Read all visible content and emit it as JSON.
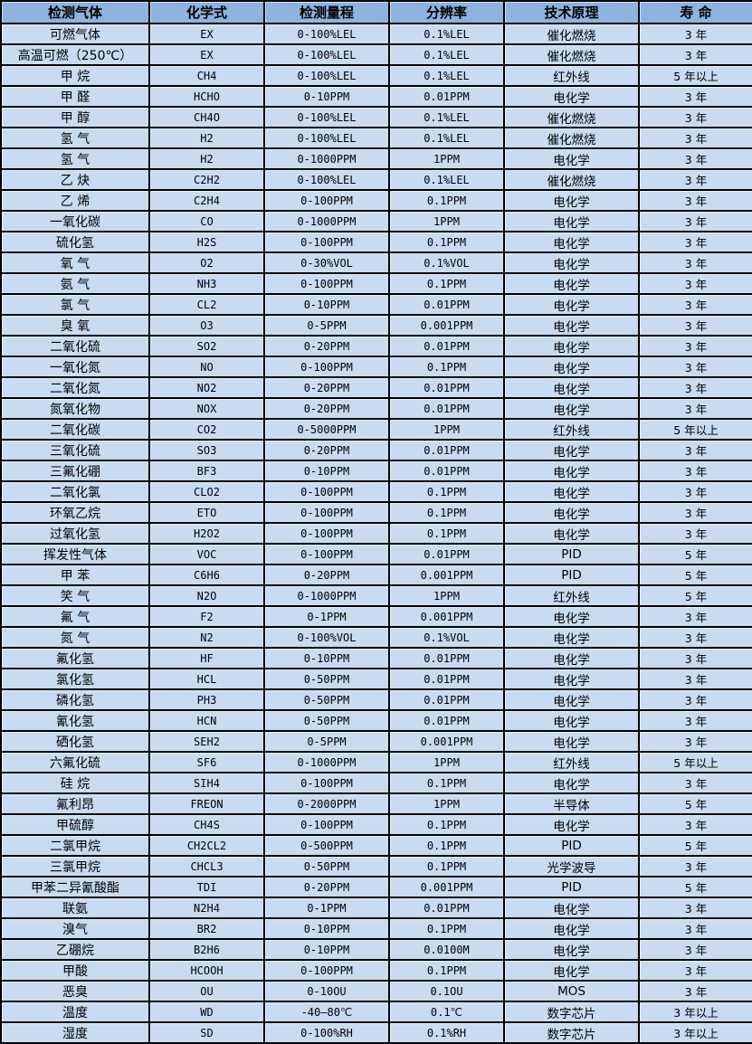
{
  "colors": {
    "header_bg": "#8FB2DF",
    "row_bg": "#C9DBF1",
    "border": "#000000",
    "text": "#000000"
  },
  "table": {
    "headers": [
      "检测气体",
      "化学式",
      "检测量程",
      "分辨率",
      "技术原理",
      "寿 命"
    ],
    "rows": [
      [
        "可燃气体",
        "EX",
        "0-100%LEL",
        "0.1%LEL",
        "催化燃烧",
        "3 年"
      ],
      [
        "高温可燃（250℃）",
        "EX",
        "0-100%LEL",
        "0.1%LEL",
        "催化燃烧",
        "3 年"
      ],
      [
        "甲 烷",
        "CH4",
        "0-100%LEL",
        "0.1%LEL",
        "红外线",
        "5 年以上"
      ],
      [
        "甲 醛",
        "HCHO",
        "0-10PPM",
        "0.01PPM",
        "电化学",
        "3 年"
      ],
      [
        "甲 醇",
        "CH4O",
        "0-100%LEL",
        "0.1%LEL",
        "催化燃烧",
        "3 年"
      ],
      [
        "氢 气",
        "H2",
        "0-100%LEL",
        "0.1%LEL",
        "催化燃烧",
        "3 年"
      ],
      [
        "氢 气",
        "H2",
        "0-1000PPM",
        "1PPM",
        "电化学",
        "3 年"
      ],
      [
        "乙 炔",
        "C2H2",
        "0-100%LEL",
        "0.1%LEL",
        "催化燃烧",
        "3 年"
      ],
      [
        "乙 烯",
        "C2H4",
        "0-100PPM",
        "0.1PPM",
        "电化学",
        "3 年"
      ],
      [
        "一氧化碳",
        "CO",
        "0-1000PPM",
        "1PPM",
        "电化学",
        "3 年"
      ],
      [
        "硫化氢",
        "H2S",
        "0-100PPM",
        "0.1PPM",
        "电化学",
        "3 年"
      ],
      [
        "氧 气",
        "O2",
        "0-30%VOL",
        "0.1%VOL",
        "电化学",
        "3 年"
      ],
      [
        "氨 气",
        "NH3",
        "0-100PPM",
        "0.1PPM",
        "电化学",
        "3 年"
      ],
      [
        "氯 气",
        "CL2",
        "0-10PPM",
        "0.01PPM",
        "电化学",
        "3 年"
      ],
      [
        "臭 氧",
        "O3",
        "0-5PPM",
        "0.001PPM",
        "电化学",
        "3 年"
      ],
      [
        "二氧化硫",
        "SO2",
        "0-20PPM",
        "0.01PPM",
        "电化学",
        "3 年"
      ],
      [
        "一氧化氮",
        "NO",
        "0-100PPM",
        "0.1PPM",
        "电化学",
        "3 年"
      ],
      [
        "二氧化氮",
        "NO2",
        "0-20PPM",
        "0.01PPM",
        "电化学",
        "3 年"
      ],
      [
        "氮氧化物",
        "NOX",
        "0-20PPM",
        "0.01PPM",
        "电化学",
        "3 年"
      ],
      [
        "二氧化碳",
        "CO2",
        "0-5000PPM",
        "1PPM",
        "红外线",
        "5 年以上"
      ],
      [
        "三氧化硫",
        "SO3",
        "0-20PPM",
        "0.01PPM",
        "电化学",
        "3 年"
      ],
      [
        "三氟化硼",
        "BF3",
        "0-10PPM",
        "0.01PPM",
        "电化学",
        "3 年"
      ],
      [
        "二氧化氯",
        "CLO2",
        "0-100PPM",
        "0.1PPM",
        "电化学",
        "3 年"
      ],
      [
        "环氧乙烷",
        "ETO",
        "0-100PPM",
        "0.1PPM",
        "电化学",
        "3 年"
      ],
      [
        "过氧化氢",
        "H2O2",
        "0-100PPM",
        "0.1PPM",
        "电化学",
        "3 年"
      ],
      [
        "挥发性气体",
        "VOC",
        "0-100PPM",
        "0.01PPM",
        "PID",
        "5 年"
      ],
      [
        "甲 苯",
        "C6H6",
        "0-20PPM",
        "0.001PPM",
        "PID",
        "5 年"
      ],
      [
        "笑 气",
        "N2O",
        "0-1000PPM",
        "1PPM",
        "红外线",
        "5 年"
      ],
      [
        "氟 气",
        "F2",
        "0-1PPM",
        "0.001PPM",
        "电化学",
        "3 年"
      ],
      [
        "氮 气",
        "N2",
        "0-100%VOL",
        "0.1%VOL",
        "电化学",
        "3 年"
      ],
      [
        "氟化氢",
        "HF",
        "0-10PPM",
        "0.01PPM",
        "电化学",
        "3 年"
      ],
      [
        "氯化氢",
        "HCL",
        "0-50PPM",
        "0.01PPM",
        "电化学",
        "3 年"
      ],
      [
        "磷化氢",
        "PH3",
        "0-50PPM",
        "0.01PPM",
        "电化学",
        "3 年"
      ],
      [
        "氰化氢",
        "HCN",
        "0-50PPM",
        "0.01PPM",
        "电化学",
        "3 年"
      ],
      [
        "硒化氢",
        "SEH2",
        "0-5PPM",
        "0.001PPM",
        "电化学",
        "3 年"
      ],
      [
        "六氟化硫",
        "SF6",
        "0-1000PPM",
        "1PPM",
        "红外线",
        "5 年以上"
      ],
      [
        "硅 烷",
        "SIH4",
        "0-100PPM",
        "0.1PPM",
        "电化学",
        "3 年"
      ],
      [
        "氟利昂",
        "FREON",
        "0-2000PPM",
        "1PPM",
        "半导体",
        "5 年"
      ],
      [
        "甲硫醇",
        "CH4S",
        "0-100PPM",
        "0.1PPM",
        "电化学",
        "3 年"
      ],
      [
        "二氯甲烷",
        "CH2CL2",
        "0-500PPM",
        "0.1PPM",
        "PID",
        "5 年"
      ],
      [
        "三氯甲烷",
        "CHCL3",
        "0-50PPM",
        "0.1PPM",
        "光学波导",
        "3 年"
      ],
      [
        "甲苯二异氰酸酯",
        "TDI",
        "0-20PPM",
        "0.001PPM",
        "PID",
        "5 年"
      ],
      [
        "联氨",
        "N2H4",
        "0-1PPM",
        "0.01PPM",
        "电化学",
        "3 年"
      ],
      [
        "溴气",
        "BR2",
        "0-10PPM",
        "0.1PPM",
        "电化学",
        "3 年"
      ],
      [
        "乙硼烷",
        "B2H6",
        "0-10PPM",
        "0.0100M",
        "电化学",
        "3 年"
      ],
      [
        "甲酸",
        "HCOOH",
        "0-100PPM",
        "0.1PPM",
        "电化学",
        "3 年"
      ],
      [
        "恶臭",
        "OU",
        "0-10OU",
        "0.1OU",
        "MOS",
        "3 年"
      ],
      [
        "温度",
        "WD",
        "-40—80℃",
        "0.1℃",
        "数字芯片",
        "3 年以上"
      ],
      [
        "湿度",
        "SD",
        "0-100%RH",
        "0.1%RH",
        "数字芯片",
        "3 年以上"
      ]
    ]
  }
}
